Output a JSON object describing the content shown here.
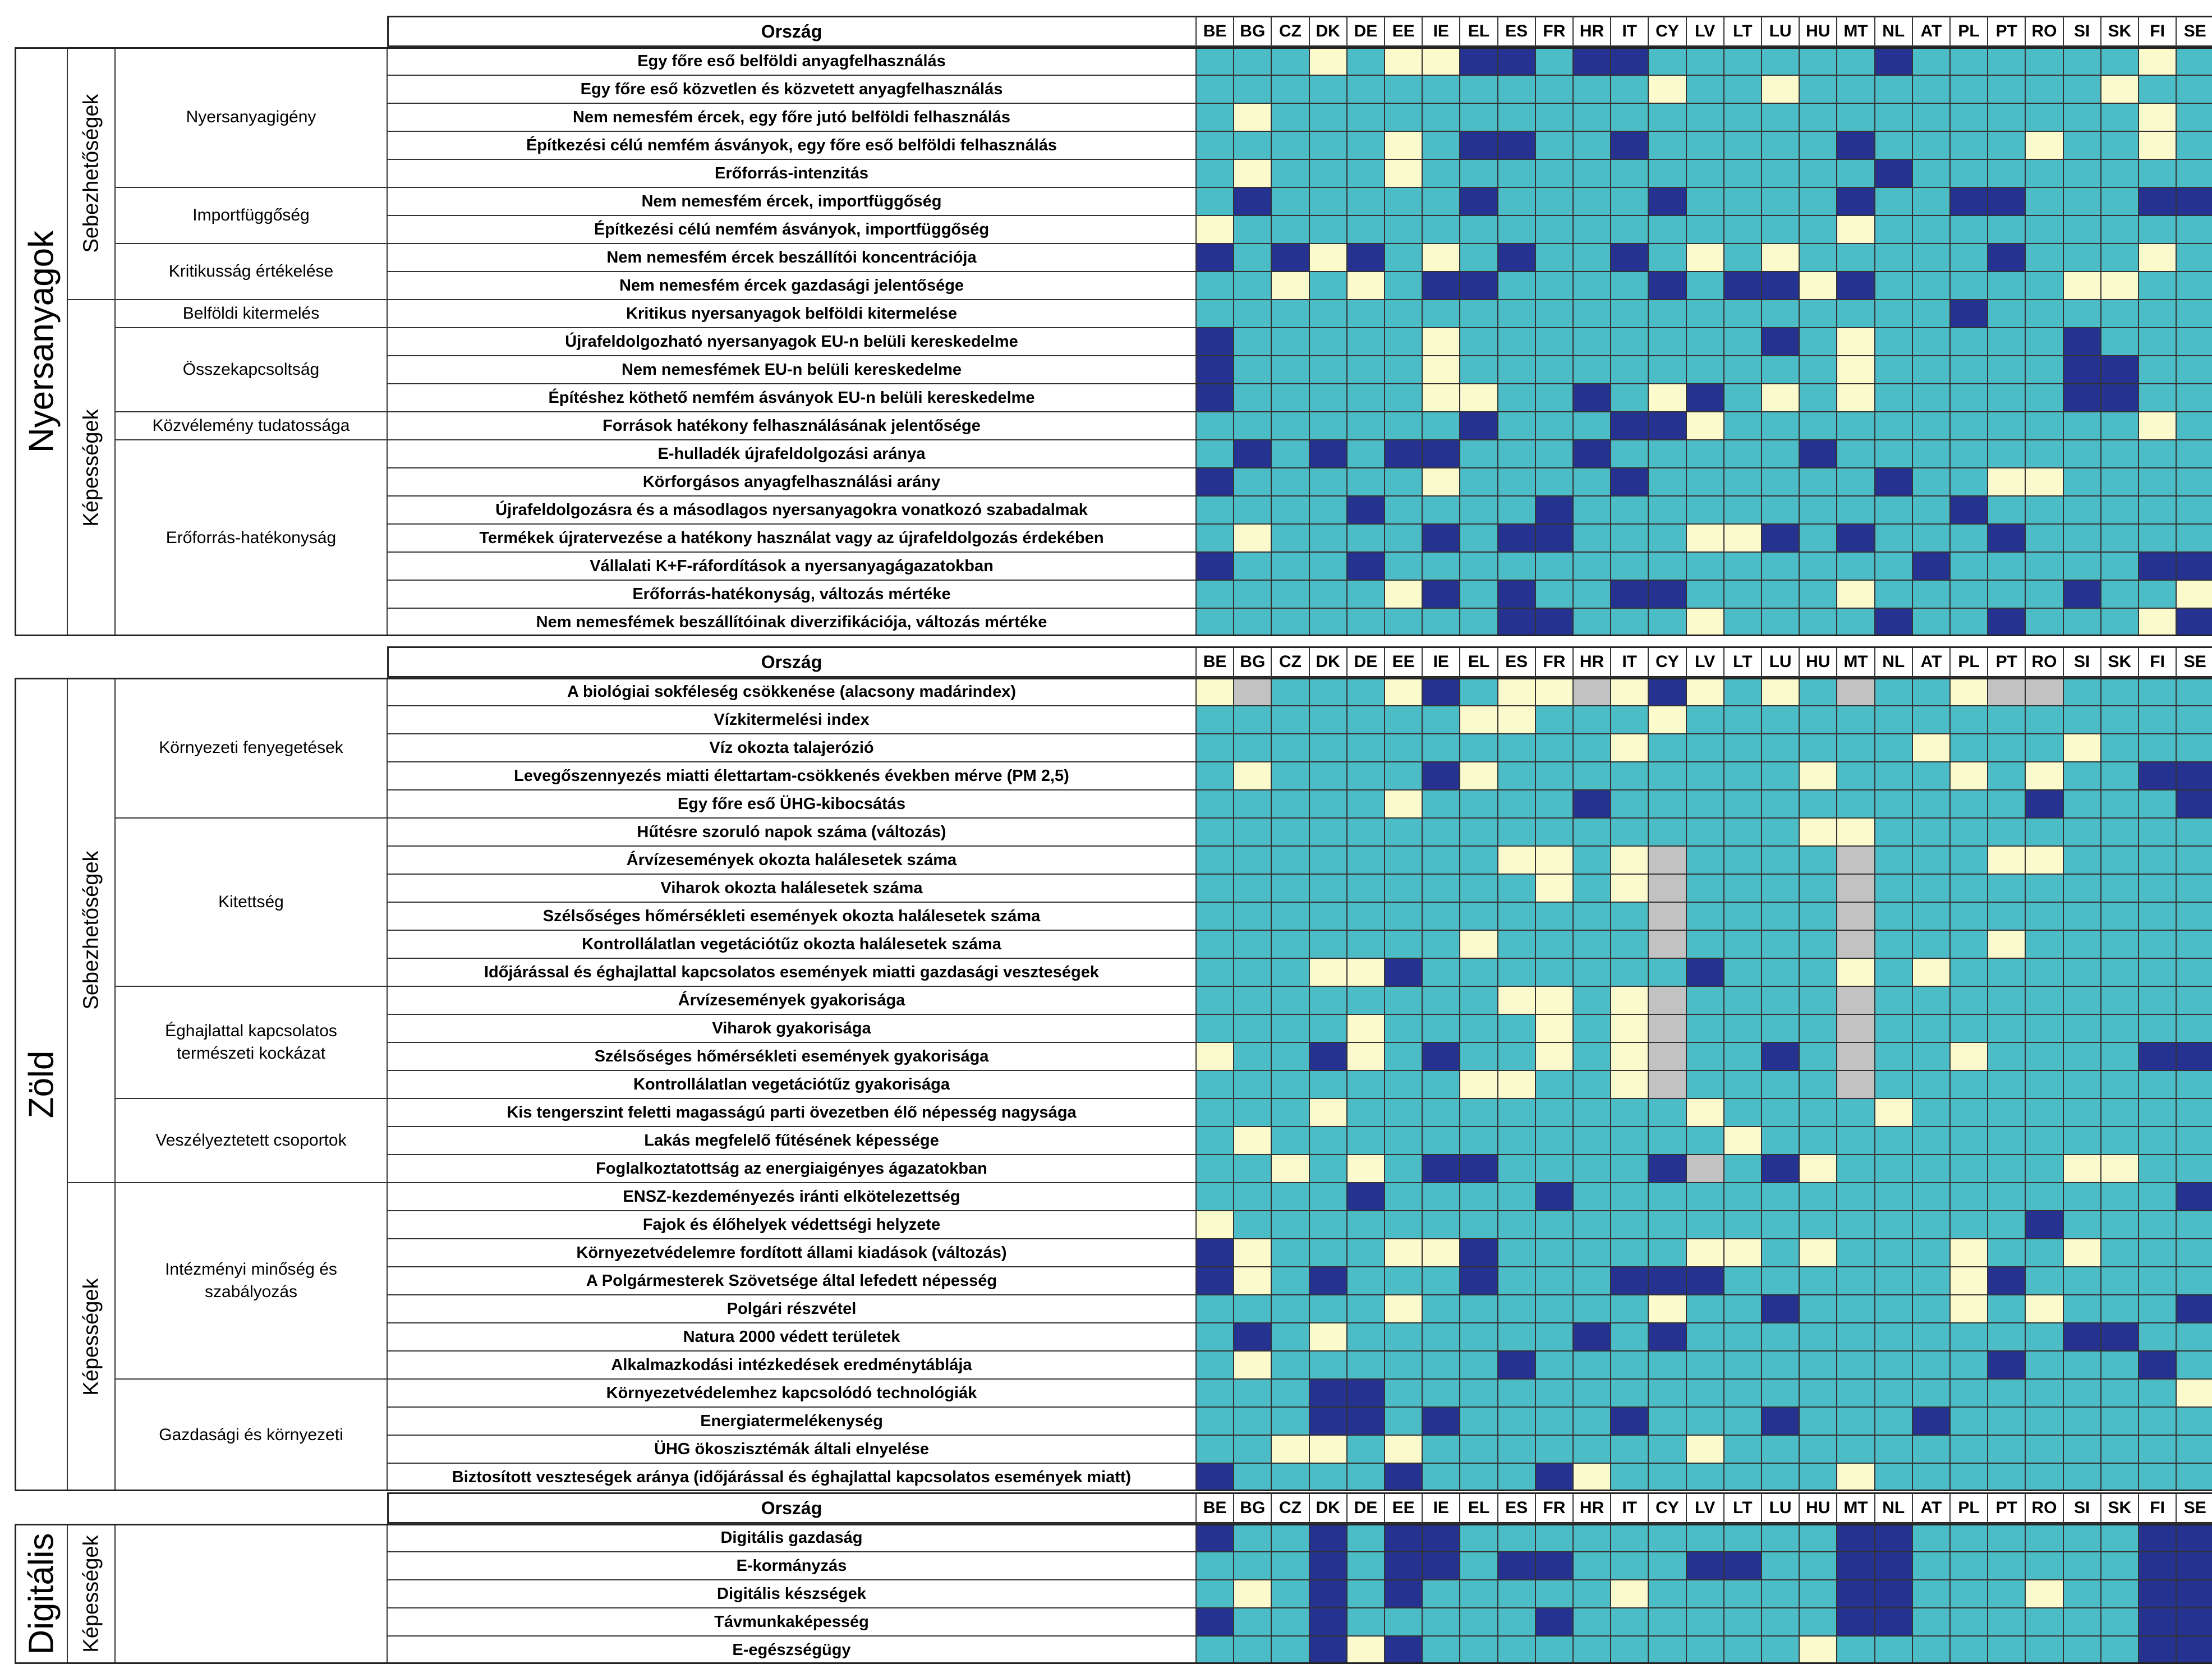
{
  "country_header": "Ország",
  "countries": [
    "BE",
    "BG",
    "CZ",
    "DK",
    "DE",
    "EE",
    "IE",
    "EL",
    "ES",
    "FR",
    "HR",
    "IT",
    "CY",
    "LV",
    "LT",
    "LU",
    "HU",
    "MT",
    "NL",
    "AT",
    "PL",
    "PT",
    "RO",
    "SI",
    "SK",
    "FI",
    "SE"
  ],
  "colors": {
    "D": "#26328f",
    "T": "#4cbdc6",
    "Y": "#fbfacc",
    "G": "#c2c2c2"
  },
  "chart_data": {
    "type": "heatmap",
    "x": [
      "BE",
      "BG",
      "CZ",
      "DK",
      "DE",
      "EE",
      "IE",
      "EL",
      "ES",
      "FR",
      "HR",
      "IT",
      "CY",
      "LV",
      "LT",
      "LU",
      "HU",
      "MT",
      "NL",
      "AT",
      "PL",
      "PT",
      "RO",
      "SI",
      "SK",
      "FI",
      "SE"
    ],
    "legend": {
      "D": "dark blue",
      "T": "teal",
      "Y": "light yellow",
      "G": "grey (no data)"
    },
    "sections": [
      {
        "name": "Nyersanyagok",
        "types": [
          {
            "name": "Sebezhetőségek",
            "subs": [
              {
                "name": "Nyersanyagigény",
                "rows": [
                  {
                    "label": "Egy főre eső belföldi anyagfelhasználás",
                    "v": "TTTYTYYDDTDDTTTTTTDTTTTTTYT"
                  },
                  {
                    "label": "Egy főre eső közvetlen és közvetett anyagfelhasználás",
                    "v": "TTTTTTTTTTTTYTTYTTTTTTTTYTT"
                  },
                  {
                    "label": "Nem nemesfém ércek, egy főre jutó belföldi felhasználás",
                    "v": "TYTTTTTTTTTTTTTTTTTTTTTTTYT"
                  },
                  {
                    "label": "Építkezési célú nemfém ásványok, egy főre eső belföldi felhasználás",
                    "v": "TTTTTYTDDTTDTTTTTDTTTTYTTYT"
                  },
                  {
                    "label": "Erőforrás-intenzitás",
                    "v": "TYTTTYTTTTTTTTTTTTDTTTTTTTT"
                  }
                ]
              },
              {
                "name": "Importfüggőség",
                "rows": [
                  {
                    "label": "Nem nemesfém ércek, importfüggőség",
                    "v": "TDTTTTTDTTTTDTTTTDTTDDTTTDD"
                  },
                  {
                    "label": "Építkezési célú nemfém ásványok, importfüggőség",
                    "v": "YTTTTTTTTTTTTTTTTYTTTTTTTTT"
                  }
                ]
              },
              {
                "name": "Kritikusság értékelése",
                "rows": [
                  {
                    "label": "Nem nemesfém ércek beszállítói koncentrációja",
                    "v": "DTDYDTYTDTTDTYTYTTTTTDTTTYT"
                  },
                  {
                    "label": "Nem nemesfém ércek gazdasági jelentősége",
                    "v": "TTYTYTDDTTTTDTDDYDTTTTTYYTT"
                  }
                ]
              }
            ]
          },
          {
            "name": "Képességek",
            "subs": [
              {
                "name": "Belföldi kitermelés",
                "rows": [
                  {
                    "label": "Kritikus nyersanyagok belföldi kitermelése",
                    "v": "TTTTTTTTTTTTTTTTTTTTDTTTTTT"
                  }
                ]
              },
              {
                "name": "Összekapcsoltság",
                "rows": [
                  {
                    "label": "Újrafeldolgozható nyersanyagok EU-n belüli kereskedelme",
                    "v": "DTTTTTYTTTTTTTTDTYTTTTTDTTT"
                  },
                  {
                    "label": "Nem nemesfémek EU-n belüli kereskedelme",
                    "v": "DTTTTTYTTTTTTTTTTYTTTTTDDTT"
                  },
                  {
                    "label": "Építéshez köthető nemfém ásványok EU-n belüli kereskedelme",
                    "v": "DTTTTTYYTTDTYDTYTYTTTTTDDTT"
                  }
                ]
              },
              {
                "name": "Közvélemény tudatossága",
                "rows": [
                  {
                    "label": "Források hatékony felhasználásának jelentősége",
                    "v": "TTTTTTTDTTTDDYTTTTTTTTTTTYT"
                  }
                ]
              },
              {
                "name": "Erőforrás-hatékonyság",
                "rows": [
                  {
                    "label": "E-hulladék újrafeldolgozási aránya",
                    "v": "TDTDTDDTTTDTTTTTDTTTTTTTTTT"
                  },
                  {
                    "label": "Körforgásos anyagfelhasználási arány",
                    "v": "DTTTTTYTTTTDTTTTTTDTTYYTTTT"
                  },
                  {
                    "label": "Újrafeldolgozásra és a másodlagos nyersanyagokra vonatkozó szabadalmak",
                    "v": "TTTTDTTTTDTTTTTTTTTTDTTTTTT"
                  },
                  {
                    "label": "Termékek újratervezése a hatékony használat vagy az újrafeldolgozás érdekében",
                    "v": "TYTTTTDTDDTTTYYDTDTTTDTTTTT"
                  },
                  {
                    "label": "Vállalati K+F-ráfordítások a nyersanyagágazatokban",
                    "v": "DTTTDTTTTTTTTTTTTTTDTTTTTDD"
                  },
                  {
                    "label": "Erőforrás-hatékonyság, változás mértéke",
                    "v": "TTTTTYDTDTTDDTTTTYTTTTTDTTY"
                  },
                  {
                    "label": "Nem nemesfémek beszállítóinak diverzifikációja, változás mértéke",
                    "v": "TTTTTTTTDDTTTYTTTTDTTDTTTYD"
                  }
                ]
              }
            ]
          }
        ]
      },
      {
        "name": "Zöld",
        "types": [
          {
            "name": "Sebezhetőségek",
            "subs": [
              {
                "name": "Környezeti fenyegetések",
                "rows": [
                  {
                    "label": "A biológiai sokféleség csökkenése (alacsony madárindex)",
                    "v": "YGTTTYDTYYGYDYTYTGTTYGGTTTT"
                  },
                  {
                    "label": "Vízkitermelési index",
                    "v": "TTTTTTTYYTTTYTTTTTTTTTTTTTT"
                  },
                  {
                    "label": "Víz okozta talajerózió",
                    "v": "TTTTTTTTTTTYTTTTTTTYTTTYTTT"
                  },
                  {
                    "label": "Levegőszennyezés miatti élettartam-csökkenés években mérve (PM 2,5)",
                    "v": "TYTTTTDYTTTTTTTTYTTTYTYTTDD"
                  },
                  {
                    "label": "Egy főre eső ÜHG-kibocsátás",
                    "v": "TTTTTYTTTTDTTTTTTTTTTTDTTTD"
                  }
                ]
              },
              {
                "name": "Kitettség",
                "rows": [
                  {
                    "label": "Hűtésre szoruló napok száma (változás)",
                    "v": "TTTTTTTTTTTTTTTTYYTTTTTTTTT"
                  },
                  {
                    "label": "Árvízesemények okozta halálesetek száma",
                    "v": "TTTTTTTTYYTYGTTTTGTTTYYTTTT"
                  },
                  {
                    "label": "Viharok okozta halálesetek száma",
                    "v": "TTTTTTTTTYTYGTTTTGTTTTTTTTT"
                  },
                  {
                    "label": "Szélsőséges hőmérsékleti események okozta halálesetek száma",
                    "v": "TTTTTTTTTTTTGTTTTGTTTTTTTTT"
                  },
                  {
                    "label": "Kontrollálatlan vegetációtűz okozta halálesetek száma",
                    "v": "TTTTTTTYTTTTGTTTTGTTTYTTTTT"
                  },
                  {
                    "label": "Időjárással és éghajlattal kapcsolatos események miatti gazdasági veszteségek",
                    "v": "TTTYYDTTTTTTTDTTTYTYTTTTTTT"
                  }
                ]
              },
              {
                "name": "Éghajlattal kapcsolatos természeti kockázat",
                "rows": [
                  {
                    "label": "Árvízesemények gyakorisága",
                    "v": "TTTTTTTTYYTYGTTTTGTTTTTTTTT"
                  },
                  {
                    "label": "Viharok gyakorisága",
                    "v": "TTTTYTTTTYTYGTTTTGTTTTTTTTT"
                  },
                  {
                    "label": "Szélsőséges hőmérsékleti események gyakorisága",
                    "v": "YTTDYTDTTYTYGTTDTGTTYTTTTDD"
                  },
                  {
                    "label": "Kontrollálatlan vegetációtűz gyakorisága",
                    "v": "TTTTTTTYYTTYGTTTTGTTTTTTTTT"
                  }
                ]
              },
              {
                "name": "Veszélyeztetett csoportok",
                "rows": [
                  {
                    "label": "Kis tengerszint feletti magasságú parti övezetben élő népesség nagysága",
                    "v": "TTTYTTTTTTTTTYTTTTYTTTTTTTT"
                  },
                  {
                    "label": "Lakás megfelelő fűtésének képessége",
                    "v": "TYTTTTTTTTTTTTYTTTTTTTTTTTT"
                  },
                  {
                    "label": "Foglalkoztatottság az energiaigényes ágazatokban",
                    "v": "TTYTYTDDTTTTDGTDYTTTTTTYYTT"
                  }
                ]
              }
            ]
          },
          {
            "name": "Képességek",
            "subs": [
              {
                "name": "Intézményi minőség és szabályozás",
                "rows": [
                  {
                    "label": "ENSZ-kezdeményezés iránti elkötelezettség",
                    "v": "TTTTDTTTTDTTTTTTTTTTTTTTTTD"
                  },
                  {
                    "label": "Fajok és élőhelyek védettségi helyzete",
                    "v": "YTTTTTTTTTTTTTTTTTTTTTDTTTT"
                  },
                  {
                    "label": "Környezetvédelemre fordított állami kiadások (változás)",
                    "v": "DYTTTYYDTTTTTYYTYTTTYTTYTTT"
                  },
                  {
                    "label": "A Polgármesterek Szövetsége által lefedett népesség",
                    "v": "DYTDTTTDTTTDDDTTTTTTYDTTTTT"
                  },
                  {
                    "label": "Polgári részvétel",
                    "v": "TTTTTYTTTTTTYTTDTTTTYTYTTTD"
                  },
                  {
                    "label": "Natura 2000 védett területek",
                    "v": "TDTYTTTTTTDTDTTTTTTTTTTDDTT"
                  },
                  {
                    "label": "Alkalmazkodási intézkedések eredménytáblája",
                    "v": "TYTTTTTTDTTTTTTTTTTTTDTTTDT"
                  }
                ]
              },
              {
                "name": "Gazdasági és környezeti",
                "rows": [
                  {
                    "label": "Környezetvédelemhez kapcsolódó technológiák",
                    "v": "TTTDDTTTTTTTTTTTTTTTTTTTTTY"
                  },
                  {
                    "label": "Energiatermelékenység",
                    "v": "TTTDDTDTTTTDTTTDTTTDTTTTTTT"
                  },
                  {
                    "label": "ÜHG ökoszisztémák általi elnyelése",
                    "v": "TTYYTYTTTTTTTYTTTTTTTTTTTTT"
                  },
                  {
                    "label": "Biztosított veszteségek aránya (időjárással és éghajlattal kapcsolatos események miatt)",
                    "v": "DTTTTDTTTDYTTTTTTYTTTTTTTTT"
                  }
                ]
              }
            ]
          }
        ]
      },
      {
        "name": "Digitális",
        "types": [
          {
            "name": "Képességek",
            "subs": [
              {
                "name": "",
                "rows": [
                  {
                    "label": "Digitális gazdaság",
                    "v": "DTTDTDDTTTTTTTTTTDDTTTTTTDD"
                  },
                  {
                    "label": "E-kormányzás",
                    "v": "TTTDTDDTDDTTTDDTTDDTTTTTTDD"
                  },
                  {
                    "label": "Digitális készségek",
                    "v": "TYTDTDTTTTTYTTTTTDDTTTYTTDD"
                  },
                  {
                    "label": "Távmunkaképesség",
                    "v": "DTTDTTTTTDTTTTTTTDDTTTTTTDD"
                  },
                  {
                    "label": "E-egészségügy",
                    "v": "TTTDYDTTTTTTTTTTYTTTTTTTTDD"
                  }
                ]
              }
            ]
          }
        ]
      }
    ]
  }
}
